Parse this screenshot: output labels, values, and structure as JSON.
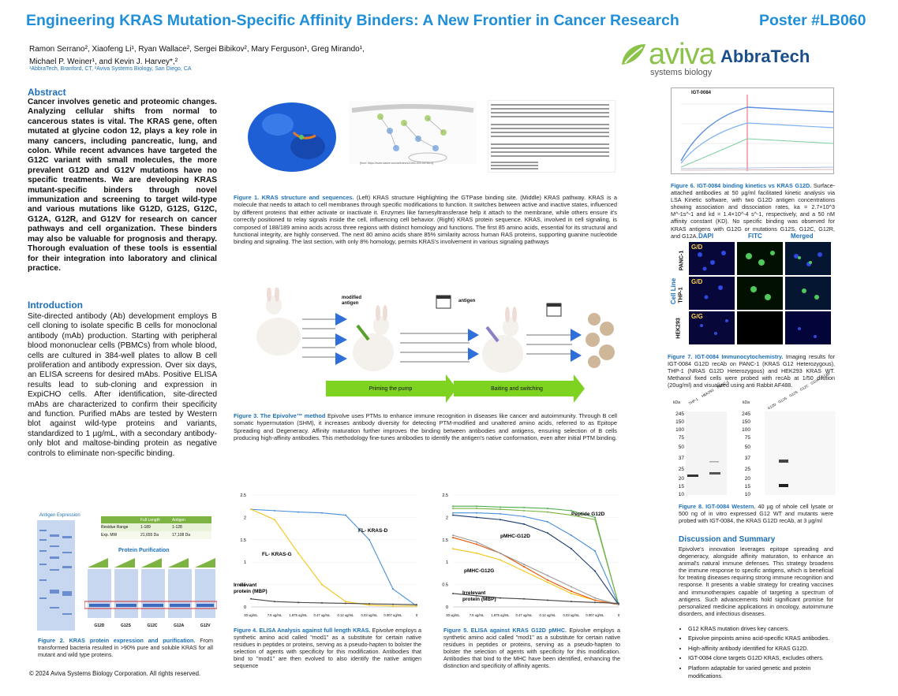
{
  "header": {
    "title": "Engineering KRAS Mutation-Specific Affinity Binders: A New Frontier in Cancer Research",
    "poster_no": "Poster  #LB060",
    "authors_line1": "Ramon Serrano², Xiaofeng Li¹, Ryan Wallace², Sergei Bibikov², Mary Ferguson¹, Greg Mirando¹,",
    "authors_line2": "Michael P. Weiner¹, and Kevin J. Harvey*,²",
    "affiliations": "¹AbbraTech, Branford, CT,  ²Aviva Systems Biology, San Diego, CA"
  },
  "logos": {
    "aviva": "aviva",
    "aviva_sub": "systems biology",
    "abbratech": "AbbraTech"
  },
  "abstract": {
    "heading": "Abstract",
    "text": "Cancer involves genetic and proteomic changes. Analyzing cellular shifts from normal to cancerous states is vital. The KRAS gene, often mutated at glycine codon 12, plays a key role in many cancers, including pancreatic, lung, and colon. While recent advances have targeted the G12C variant with small molecules, the more prevalent G12D and G12V mutations have no specific treatments. We are developing KRAS mutant-specific binders through novel immunization and screening to target wild-type and various mutations like G12D, G12S, G12C, G12A, G12R, and G12V for research on cancer pathways and cell organization. These binders may also be valuable for prognosis and therapy. Thorough evaluation of these tools is essential for their integration into laboratory and clinical practice."
  },
  "intro": {
    "heading": "Introduction",
    "text": "Site-directed antibody (Ab) development employs B cell cloning to isolate specific B cells for monoclonal antibody (mAb) production. Starting with peripheral blood mononuclear cells (PBMCs) from whole blood, cells are cultured in 384-well plates to allow B cell proliferation and antibody expression. Over six days, an ELISA screens for desired mAbs. Positive ELISA results lead to sub-cloning and expression in ExpiCHO cells. After identification, site-directed mAbs are characterized to confirm their specificity and function. Purified mAbs are tested by Western blot against wild-type proteins and variants, standardized to 1 µg/mL, with a secondary antibody-only blot and maltose-binding protein as negative controls to eliminate non-specific binding."
  },
  "fig1": {
    "source": "[from: https://www.nature.com/articles/s41392-021-00780-4]",
    "caption_b": "Figure 1. KRAS structure and sequences.",
    "caption": " (Left) KRAS structure Highlighting the GTPase binding site. (Middle) KRAS pathway. KRAS is a molecule that needs to attach to cell membranes through specific modifications to function. It switches between active and inactive states, influenced by different proteins that either activate or inactivate it. Enzymes like farnesyltransferase help it attach to the membrane, while others ensure it's correctly positioned to relay signals inside the cell, influencing cell behavior. (Right) KRAS protein sequence. KRAS, involved in cell signaling, is composed of 188/189 amino acids across three regions with distinct homology and functions. The first 85 amino acids, essential for its structural and functional integrity, are highly conserved. The next 80 amino acids share 85% similarity across human RAS proteins, supporting guanine nucleotide binding and signaling. The last section, with only 8% homology, permits KRAS's involvement in various signaling pathways"
  },
  "fig3": {
    "label_modified": "modified antigen",
    "label_antigen": "antigen",
    "arrow1": "Priming the pump",
    "arrow2": "Baiting and switching",
    "caption_b": "Figure 3.  The Epivolve™ method",
    "caption": " Epivolve uses PTMs to enhance immune recognition in diseases like cancer and autoimmunity. Through B cell somatic hypermutation (SHM), it increases antibody diversity for detecting PTM-modified and unaltered amino acids, referred to as Epitope Spreading and Degeneracy. Affinity maturation further improves the binding between antibodies and antigens, ensuring selection of B cells producing high-affinity antibodies. This methodology fine-tunes antibodies to identify the antigen's native conformation, even after initial PTM binding."
  },
  "fig2": {
    "gel_label": "Antigen Expression",
    "table_h1": "Full Length",
    "table_h2": "Antigen",
    "row1_label": "Residue Range",
    "row1_v1": "1-189",
    "row1_v2": "1-128",
    "row2_label": "Exp. MW",
    "row2_v1": "21,655 Da",
    "row2_v2": "17,108 Da",
    "purif_title": "Protein Purification",
    "lanes": [
      "G12D",
      "G12S",
      "G12C",
      "G12A",
      "G12V"
    ],
    "caption_b": "Figure 2.  KRAS protein expression and purification.",
    "caption": " From transformed bacteria resulted in >90% pure and soluble KRAS for all mutant and wild type proteins."
  },
  "fig4": {
    "caption_b": "Figure 4.  ELISA Analysis against full length KRAS.",
    "caption": " Epivolve employs a synthetic amino acid called \"mod1\" as a substitute for certain native residues in peptides or proteins, serving as a pseudo-hapten to bolster the selection of agents with specificity for this modification. Antibodies that bind to \"mod1\" are then evolved to also identify the native antigen sequence"
  },
  "fig5": {
    "caption_b": "Figure 5.  ELISA against KRAS G12D pMHC.",
    "caption": " Epivolve employs a synthetic amino acid called \"mod1\" as a substitute for certain native residues in peptides or proteins, serving as a pseudo-hapten to bolster the selection of agents with specificity for this modification. Antibodies that bind to the MHC have been identified, enhancing the distinction and specificity of affinity agents."
  },
  "fig6": {
    "panel_label": "IGT-0084",
    "caption_b": "Figure 6.  IGT-0084 binding kinetics vs KRAS G12D.",
    "caption": " Surface-attached antibodies at 50 µg/ml facilitated kinetic analysis via LSA Kinetic software, with two G12D antigen concentrations showing association and dissociation rates, ka = 2.7×10^3 M^-1s^-1 and kd = 1.4×10^-4 s^-1, respectively, and a 50 nM affinity constant (KD). No specific binding was observed for KRAS antigens with G12G or mutations G12S, G12C, G12R, and G12A."
  },
  "fig7": {
    "cols": [
      "DAPI",
      "FITC",
      "Merged"
    ],
    "rows": [
      "PANC-1",
      "THP-1",
      "HEK293"
    ],
    "row_labels": [
      "G/D",
      "G/D",
      "G/G"
    ],
    "side": "Cell Line",
    "caption_b": "Figure 7. IGT-0084 Immunocytochemistry.",
    "caption": " Imaging results for IGT-0084 G12D recAb on PANC-1 (KRAS G12 Heterozygous), THP-1 (NRAS G12D Heterozygous) and HEK293 KRAS WT. Methanol fixed cells were probed with recAb at 1/50 dilution (20ug/ml) and visualized using anti Rabbit AF488."
  },
  "fig8": {
    "kda": "kDa",
    "markers": [
      "245",
      "150",
      "100",
      "75",
      "50",
      "37",
      "25",
      "20",
      "15",
      "10"
    ],
    "lanes_left": [
      "THP-1",
      "HEK293",
      "PANC-1"
    ],
    "lanes_right": [
      "G12D",
      "G12G",
      "G12S",
      "G12C",
      "G12A",
      "G12R"
    ],
    "caption_b": "Figure 8.  IGT-0084 Western.",
    "caption": "  40 µg of whole cell lysate or 500 ng of in vitro expressed G12 WT and mutants were probed with IGT-0084, the KRAS G12D recAb, at 3 µg/ml"
  },
  "discussion": {
    "heading": "Discussion and Summary",
    "text": "Epivolve's innovation leverages epitope spreading and degeneracy, alongside affinity maturation, to enhance an animal's natural immune defenses. This strategy broadens the immune response to specific antigens, which is beneficial for treating diseases requiring strong immune recognition and response. It presents a viable strategy for creating vaccines and immunotherapies capable of targeting a spectrum of antigens. Such advancements hold significant promise for personalized medicine applications in oncology, autoimmune disorders, and infectious diseases.",
    "bullets": [
      "G12 KRAS mutation drives key cancers.",
      "Epivolve pinpoints amino acid-specific KRAS antibodies.",
      "High-affinity antibody identified for KRAS G12D.",
      "IGT-0084 clone targets G12D KRAS, excludes others.",
      "Platform adaptable for varied genetic and protein modifications."
    ]
  },
  "footer": "© 2024 Aviva Systems Biology Corporation. All rights reserved.",
  "chart_data": [
    {
      "type": "line",
      "x": [
        "30 ug/mL",
        "7.5 ug/mL",
        "1.875 ug/mL",
        "0.47 ug/mL",
        "0.12 ug/mL",
        "0.03 ug/mL",
        "0.007 ug/mL",
        "0"
      ],
      "ylim": [
        0,
        2.5
      ],
      "yticks": [
        "0",
        "0.5",
        "1",
        "1.5",
        "2",
        "2.5"
      ],
      "series": [
        {
          "name": "FL- KRAS-D",
          "color": "#4a90d9",
          "values": [
            2.18,
            2.15,
            2.12,
            2.1,
            2.05,
            1.5,
            0.4,
            0.02
          ]
        },
        {
          "name": "FL- KRAS-G",
          "color": "#f5c518",
          "values": [
            2.18,
            1.95,
            1.2,
            0.5,
            0.12,
            0.04,
            0.02,
            0.02
          ]
        },
        {
          "name": "Irrelevant protein (MBP)",
          "color": "#444444",
          "values": [
            0.18,
            0.12,
            0.1,
            0.09,
            0.08,
            0.07,
            0.06,
            0.05
          ]
        }
      ]
    },
    {
      "type": "line",
      "x": [
        "30 ug/mL",
        "7.5 ug/mL",
        "1.875 ug/mL",
        "0.47 ug/mL",
        "0.12 ug/mL",
        "0.03 ug/mL",
        "0.007 ug/mL",
        "0"
      ],
      "ylim": [
        0,
        2.5
      ],
      "yticks": [
        "0",
        "0.5",
        "1",
        "1.5",
        "2",
        "2.5"
      ],
      "series": [
        {
          "name": "Peptide G12D",
          "color": "#4caf50",
          "values": [
            2.25,
            2.25,
            2.23,
            2.22,
            2.2,
            2.15,
            2.0,
            0.05
          ]
        },
        {
          "name": "",
          "color": "#7cb342",
          "values": [
            2.2,
            2.2,
            2.18,
            2.15,
            2.12,
            2.05,
            1.95,
            0.05
          ]
        },
        {
          "name": "pMHC-G12D",
          "color": "#4a90d9",
          "values": [
            2.1,
            2.1,
            2.08,
            2.02,
            1.9,
            1.6,
            1.25,
            0.05
          ]
        },
        {
          "name": "",
          "color": "#1a3a6e",
          "values": [
            2.05,
            2.0,
            1.95,
            1.85,
            1.65,
            1.3,
            0.8,
            0.05
          ]
        },
        {
          "name": "pMHC-G12G",
          "color": "#f5c518",
          "values": [
            1.3,
            1.2,
            1.05,
            0.8,
            0.55,
            0.3,
            0.15,
            0.05
          ]
        },
        {
          "name": "",
          "color": "#e65100",
          "values": [
            1.55,
            1.4,
            1.2,
            0.9,
            0.6,
            0.35,
            0.15,
            0.05
          ]
        },
        {
          "name": "",
          "color": "#999999",
          "values": [
            1.6,
            1.45,
            1.2,
            0.95,
            0.7,
            0.45,
            0.2,
            0.05
          ]
        },
        {
          "name": "Irrelevant protein (MBP)",
          "color": "#444444",
          "values": [
            0.3,
            0.25,
            0.2,
            0.18,
            0.15,
            0.12,
            0.1,
            0.08
          ]
        }
      ]
    }
  ]
}
